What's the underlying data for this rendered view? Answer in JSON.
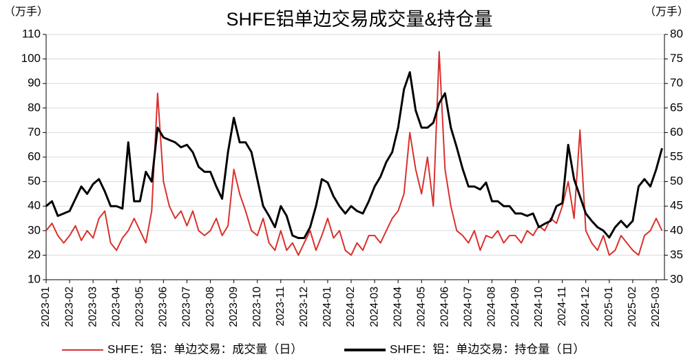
{
  "chart_data": {
    "type": "line",
    "title": "SHFE铝单边交易成交量&持仓量",
    "y_unit": "（万手）",
    "y2_unit": "（万手）",
    "categories": [
      "2023-01",
      null,
      null,
      null,
      "2023-02",
      null,
      null,
      null,
      "2023-03",
      null,
      null,
      null,
      "2023-04",
      null,
      null,
      null,
      "2023-05",
      null,
      null,
      null,
      "2023-06",
      null,
      null,
      null,
      "2023-07",
      null,
      null,
      null,
      "2023-08",
      null,
      null,
      null,
      "2023-09",
      null,
      null,
      null,
      "2023-10",
      null,
      null,
      null,
      "2023-11",
      null,
      null,
      null,
      "2023-12",
      null,
      null,
      null,
      "2024-01",
      null,
      null,
      null,
      "2024-02",
      null,
      null,
      null,
      "2024-03",
      null,
      null,
      null,
      "2024-04",
      null,
      null,
      null,
      "2024-05",
      null,
      null,
      null,
      "2024-06",
      null,
      null,
      null,
      "2024-07",
      null,
      null,
      null,
      "2024-08",
      null,
      null,
      null,
      "2024-09",
      null,
      null,
      null,
      "2024-10",
      null,
      null,
      null,
      "2024-11",
      null,
      null,
      null,
      "2024-12",
      null,
      null,
      null,
      "2025-01",
      null,
      null,
      null,
      "2025-02",
      null,
      null,
      null,
      "2025-03",
      null
    ],
    "series": [
      {
        "name": "SHFE：铝：单边交易：成交量（日）",
        "color": "#d9302c",
        "axis": "y",
        "values": [
          30,
          33,
          28,
          25,
          28,
          32,
          26,
          30,
          27,
          35,
          38,
          25,
          22,
          27,
          30,
          35,
          30,
          25,
          38,
          86,
          50,
          40,
          35,
          38,
          32,
          38,
          30,
          28,
          30,
          35,
          28,
          32,
          55,
          45,
          38,
          30,
          28,
          35,
          25,
          22,
          30,
          22,
          25,
          20,
          25,
          30,
          22,
          28,
          35,
          27,
          30,
          22,
          20,
          25,
          22,
          28,
          28,
          25,
          30,
          35,
          38,
          45,
          70,
          55,
          45,
          60,
          40,
          103,
          55,
          40,
          30,
          28,
          25,
          30,
          22,
          28,
          27,
          30,
          25,
          28,
          28,
          25,
          30,
          28,
          32,
          30,
          35,
          33,
          40,
          50,
          35,
          71,
          30,
          25,
          22,
          28,
          20,
          22,
          28,
          25,
          22,
          20,
          28,
          30,
          35,
          30
        ]
      },
      {
        "name": "SHFE：铝：单边交易：持仓量（日）",
        "color": "#000000",
        "axis": "y2",
        "values": [
          45,
          46,
          43,
          43.5,
          44,
          46.5,
          49,
          47.5,
          49.5,
          50.5,
          48,
          45,
          45,
          44.5,
          58,
          46,
          46,
          52,
          50,
          61,
          59,
          58.5,
          58,
          57,
          57.5,
          56,
          53,
          52,
          52,
          49,
          46.5,
          56,
          63,
          58,
          58,
          56,
          50.5,
          45,
          43,
          40.7,
          45,
          43,
          39,
          38.5,
          38.5,
          40.7,
          45,
          50.5,
          49.8,
          47,
          45,
          43.5,
          45,
          44,
          43.5,
          46,
          49,
          51,
          54,
          56,
          61,
          68.8,
          72.3,
          64.5,
          61,
          61,
          62,
          66,
          68,
          61,
          57,
          52.6,
          49,
          49,
          48.4,
          49.8,
          46,
          46,
          45,
          45,
          43.5,
          43.5,
          43,
          43.5,
          40.7,
          41.4,
          42,
          45,
          45.6,
          57.5,
          50.5,
          47,
          43.5,
          42,
          40.7,
          40,
          38.6,
          40.7,
          42,
          40.7,
          42,
          49,
          50.5,
          49,
          52.5,
          56.8
        ]
      }
    ],
    "ylim": [
      10,
      110
    ],
    "yticks": [
      10,
      20,
      30,
      40,
      50,
      60,
      70,
      80,
      90,
      100,
      110
    ],
    "y2lim": [
      30,
      80
    ],
    "y2ticks": [
      30,
      35,
      40,
      45,
      50,
      55,
      60,
      65,
      70,
      75,
      80
    ],
    "grid": true,
    "legend": "bottom"
  }
}
